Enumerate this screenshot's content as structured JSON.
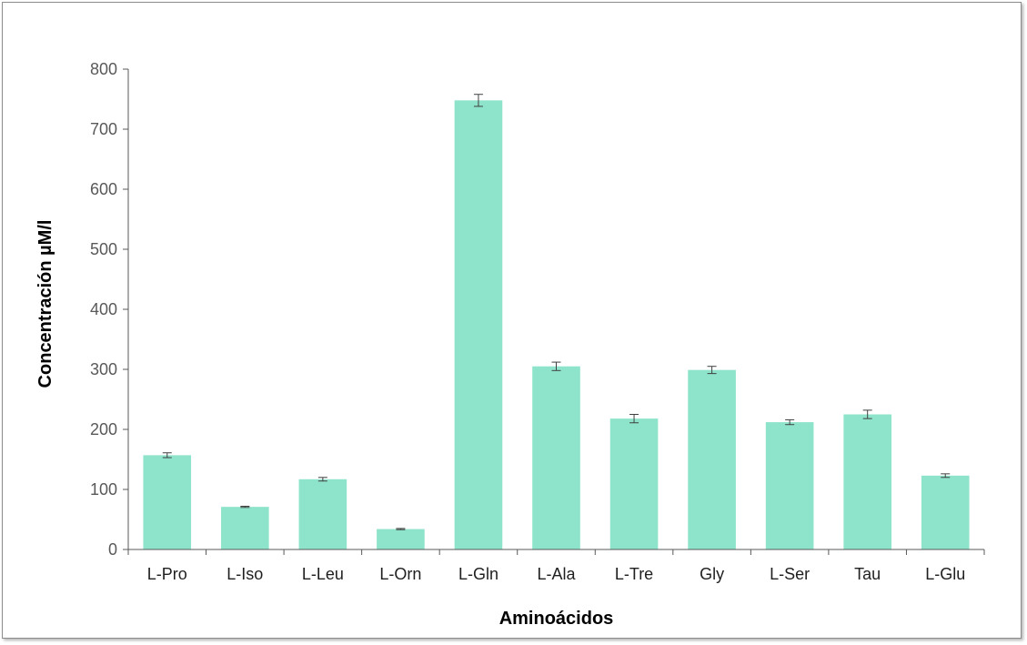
{
  "chart_data": {
    "type": "bar",
    "title": "",
    "xlabel": "Aminoácidos",
    "ylabel": "Concentración µM/l",
    "ylim": [
      0,
      800
    ],
    "yticks": [
      0,
      100,
      200,
      300,
      400,
      500,
      600,
      700,
      800
    ],
    "categories": [
      "L-Pro",
      "L-Iso",
      "L-Leu",
      "L-Orn",
      "L-Gln",
      "L-Ala",
      "L-Tre",
      "Gly",
      "L-Ser",
      "Tau",
      "L-Glu"
    ],
    "values": [
      157,
      71,
      117,
      34,
      748,
      305,
      218,
      299,
      212,
      225,
      123
    ],
    "errors": [
      4,
      1,
      3,
      1,
      10,
      7,
      7,
      6,
      4,
      7,
      3
    ],
    "grid": false,
    "legend": "none",
    "bar_color": "#8EE4CA"
  }
}
